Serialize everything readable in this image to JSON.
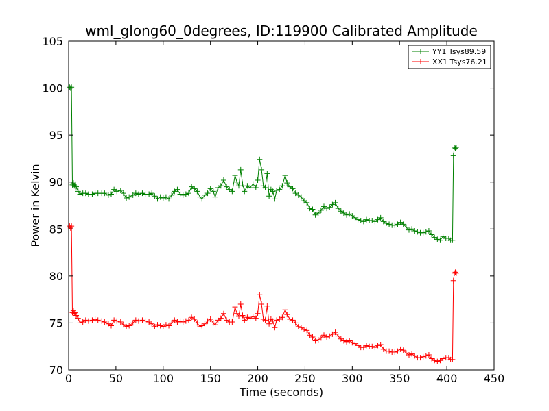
{
  "chart_data": {
    "type": "line",
    "title": "wml_glong60_0degrees, ID:119900 Calibrated Amplitude",
    "xlabel": "Time (seconds)",
    "ylabel": "Power in Kelvin",
    "xlim": [
      0,
      450
    ],
    "ylim": [
      70,
      105
    ],
    "x_ticks": [
      0,
      50,
      100,
      150,
      200,
      250,
      300,
      350,
      400,
      450
    ],
    "y_ticks": [
      70,
      75,
      80,
      85,
      90,
      95,
      100,
      105
    ],
    "grid": false,
    "legend_position": "top-right",
    "marker": "plus",
    "series": [
      {
        "name": "YY1 Tsys89.59",
        "color": "#008000",
        "points": [
          [
            1,
            100.1
          ],
          [
            2,
            100.0
          ],
          [
            3,
            100.1
          ],
          [
            4,
            89.7
          ],
          [
            5,
            89.9
          ],
          [
            6,
            89.6
          ],
          [
            7,
            89.8
          ],
          [
            8,
            89.5
          ],
          [
            10,
            89.0
          ],
          [
            12,
            88.7
          ],
          [
            15,
            88.8
          ],
          [
            18,
            88.8
          ],
          [
            21,
            88.7
          ],
          [
            25,
            88.7
          ],
          [
            28,
            88.8
          ],
          [
            31,
            88.8
          ],
          [
            35,
            88.8
          ],
          [
            38,
            88.8
          ],
          [
            42,
            88.6
          ],
          [
            45,
            88.7
          ],
          [
            48,
            89.2
          ],
          [
            51,
            89.0
          ],
          [
            55,
            89.1
          ],
          [
            58,
            88.8
          ],
          [
            61,
            88.3
          ],
          [
            64,
            88.4
          ],
          [
            68,
            88.6
          ],
          [
            71,
            88.8
          ],
          [
            74,
            88.7
          ],
          [
            78,
            88.8
          ],
          [
            81,
            88.7
          ],
          [
            85,
            88.7
          ],
          [
            88,
            88.8
          ],
          [
            91,
            88.5
          ],
          [
            94,
            88.2
          ],
          [
            97,
            88.4
          ],
          [
            100,
            88.3
          ],
          [
            103,
            88.4
          ],
          [
            106,
            88.2
          ],
          [
            109,
            88.6
          ],
          [
            112,
            89.0
          ],
          [
            115,
            89.2
          ],
          [
            118,
            88.7
          ],
          [
            121,
            88.6
          ],
          [
            124,
            88.7
          ],
          [
            127,
            88.8
          ],
          [
            130,
            89.5
          ],
          [
            133,
            89.3
          ],
          [
            136,
            89.0
          ],
          [
            139,
            88.4
          ],
          [
            141,
            88.2
          ],
          [
            144,
            88.6
          ],
          [
            147,
            88.8
          ],
          [
            150,
            89.3
          ],
          [
            153,
            89.0
          ],
          [
            155,
            88.4
          ],
          [
            158,
            89.4
          ],
          [
            161,
            89.6
          ],
          [
            164,
            90.2
          ],
          [
            167,
            89.5
          ],
          [
            170,
            89.2
          ],
          [
            173,
            89.0
          ],
          [
            176,
            90.7
          ],
          [
            178,
            90.0
          ],
          [
            180,
            89.6
          ],
          [
            182,
            91.3
          ],
          [
            184,
            89.8
          ],
          [
            186,
            89.0
          ],
          [
            189,
            89.6
          ],
          [
            192,
            89.4
          ],
          [
            195,
            89.8
          ],
          [
            198,
            89.4
          ],
          [
            200,
            90.2
          ],
          [
            202,
            92.4
          ],
          [
            204,
            91.3
          ],
          [
            206,
            89.6
          ],
          [
            208,
            89.4
          ],
          [
            210,
            90.9
          ],
          [
            212,
            88.5
          ],
          [
            214,
            89.2
          ],
          [
            216,
            89.0
          ],
          [
            218,
            88.2
          ],
          [
            220,
            89.1
          ],
          [
            223,
            89.2
          ],
          [
            226,
            89.6
          ],
          [
            229,
            90.7
          ],
          [
            231,
            89.9
          ],
          [
            234,
            89.5
          ],
          [
            237,
            89.3
          ],
          [
            240,
            88.8
          ],
          [
            243,
            88.6
          ],
          [
            246,
            88.4
          ],
          [
            249,
            88.0
          ],
          [
            252,
            87.8
          ],
          [
            255,
            87.2
          ],
          [
            258,
            87.1
          ],
          [
            261,
            86.5
          ],
          [
            264,
            86.7
          ],
          [
            267,
            87.0
          ],
          [
            270,
            87.4
          ],
          [
            273,
            87.2
          ],
          [
            276,
            87.3
          ],
          [
            279,
            87.6
          ],
          [
            282,
            87.8
          ],
          [
            285,
            87.2
          ],
          [
            288,
            86.9
          ],
          [
            291,
            86.7
          ],
          [
            294,
            86.5
          ],
          [
            297,
            86.6
          ],
          [
            300,
            86.4
          ],
          [
            303,
            86.2
          ],
          [
            306,
            86.0
          ],
          [
            309,
            85.9
          ],
          [
            312,
            85.8
          ],
          [
            315,
            86.0
          ],
          [
            318,
            85.9
          ],
          [
            321,
            85.9
          ],
          [
            324,
            85.8
          ],
          [
            327,
            86.0
          ],
          [
            330,
            86.2
          ],
          [
            333,
            85.8
          ],
          [
            336,
            85.6
          ],
          [
            339,
            85.5
          ],
          [
            342,
            85.4
          ],
          [
            345,
            85.4
          ],
          [
            348,
            85.5
          ],
          [
            351,
            85.7
          ],
          [
            354,
            85.5
          ],
          [
            357,
            85.2
          ],
          [
            360,
            84.9
          ],
          [
            363,
            85.0
          ],
          [
            366,
            84.8
          ],
          [
            369,
            84.7
          ],
          [
            372,
            84.6
          ],
          [
            375,
            84.6
          ],
          [
            378,
            84.7
          ],
          [
            381,
            84.8
          ],
          [
            384,
            84.4
          ],
          [
            387,
            84.1
          ],
          [
            390,
            83.9
          ],
          [
            393,
            83.8
          ],
          [
            396,
            84.2
          ],
          [
            399,
            84.0
          ],
          [
            402,
            84.0
          ],
          [
            404,
            83.8
          ],
          [
            406,
            83.8
          ],
          [
            407,
            92.8
          ],
          [
            408,
            93.7
          ],
          [
            409,
            93.6
          ],
          [
            410,
            93.7
          ]
        ]
      },
      {
        "name": "XX1 Tsys76.21",
        "color": "#ff0000",
        "points": [
          [
            1,
            85.3
          ],
          [
            2,
            85.1
          ],
          [
            3,
            85.3
          ],
          [
            4,
            76.1
          ],
          [
            5,
            76.3
          ],
          [
            6,
            76.0
          ],
          [
            7,
            76.1
          ],
          [
            8,
            75.8
          ],
          [
            10,
            75.5
          ],
          [
            12,
            75.0
          ],
          [
            15,
            75.1
          ],
          [
            18,
            75.3
          ],
          [
            21,
            75.2
          ],
          [
            25,
            75.3
          ],
          [
            28,
            75.4
          ],
          [
            31,
            75.3
          ],
          [
            35,
            75.2
          ],
          [
            38,
            75.1
          ],
          [
            42,
            74.9
          ],
          [
            45,
            74.7
          ],
          [
            48,
            75.3
          ],
          [
            51,
            75.2
          ],
          [
            55,
            75.1
          ],
          [
            58,
            74.8
          ],
          [
            61,
            74.6
          ],
          [
            64,
            74.7
          ],
          [
            68,
            75.0
          ],
          [
            71,
            75.3
          ],
          [
            74,
            75.2
          ],
          [
            78,
            75.3
          ],
          [
            81,
            75.2
          ],
          [
            85,
            75.1
          ],
          [
            88,
            74.9
          ],
          [
            91,
            74.6
          ],
          [
            94,
            74.8
          ],
          [
            97,
            74.7
          ],
          [
            100,
            74.6
          ],
          [
            103,
            74.8
          ],
          [
            106,
            74.7
          ],
          [
            109,
            75.0
          ],
          [
            112,
            75.3
          ],
          [
            115,
            75.1
          ],
          [
            118,
            75.2
          ],
          [
            121,
            75.1
          ],
          [
            124,
            75.2
          ],
          [
            127,
            75.3
          ],
          [
            130,
            75.6
          ],
          [
            133,
            75.4
          ],
          [
            136,
            75.0
          ],
          [
            139,
            74.6
          ],
          [
            141,
            74.7
          ],
          [
            144,
            74.9
          ],
          [
            147,
            75.2
          ],
          [
            150,
            75.4
          ],
          [
            153,
            75.0
          ],
          [
            155,
            74.8
          ],
          [
            158,
            75.3
          ],
          [
            161,
            75.5
          ],
          [
            164,
            76.0
          ],
          [
            167,
            75.3
          ],
          [
            170,
            75.1
          ],
          [
            173,
            75.1
          ],
          [
            176,
            76.7
          ],
          [
            178,
            76.0
          ],
          [
            180,
            75.7
          ],
          [
            182,
            77.0
          ],
          [
            184,
            75.8
          ],
          [
            186,
            75.3
          ],
          [
            189,
            75.6
          ],
          [
            192,
            75.5
          ],
          [
            195,
            75.7
          ],
          [
            198,
            75.5
          ],
          [
            200,
            76.0
          ],
          [
            202,
            78.0
          ],
          [
            204,
            77.0
          ],
          [
            206,
            75.4
          ],
          [
            208,
            75.3
          ],
          [
            210,
            76.8
          ],
          [
            212,
            74.9
          ],
          [
            214,
            75.4
          ],
          [
            216,
            75.2
          ],
          [
            218,
            74.5
          ],
          [
            220,
            75.3
          ],
          [
            223,
            75.4
          ],
          [
            226,
            75.6
          ],
          [
            229,
            76.4
          ],
          [
            231,
            75.9
          ],
          [
            234,
            75.4
          ],
          [
            237,
            75.3
          ],
          [
            240,
            75.0
          ],
          [
            243,
            74.6
          ],
          [
            246,
            74.5
          ],
          [
            249,
            74.3
          ],
          [
            252,
            74.2
          ],
          [
            255,
            73.7
          ],
          [
            258,
            73.5
          ],
          [
            261,
            73.1
          ],
          [
            264,
            73.2
          ],
          [
            267,
            73.4
          ],
          [
            270,
            73.7
          ],
          [
            273,
            73.5
          ],
          [
            276,
            73.6
          ],
          [
            279,
            73.8
          ],
          [
            282,
            74.0
          ],
          [
            285,
            73.6
          ],
          [
            288,
            73.3
          ],
          [
            291,
            73.1
          ],
          [
            294,
            73.0
          ],
          [
            297,
            73.1
          ],
          [
            300,
            72.9
          ],
          [
            303,
            72.8
          ],
          [
            306,
            72.6
          ],
          [
            309,
            72.4
          ],
          [
            312,
            72.4
          ],
          [
            315,
            72.6
          ],
          [
            318,
            72.5
          ],
          [
            321,
            72.5
          ],
          [
            324,
            72.4
          ],
          [
            327,
            72.6
          ],
          [
            330,
            72.7
          ],
          [
            333,
            72.2
          ],
          [
            336,
            72.0
          ],
          [
            339,
            72.0
          ],
          [
            342,
            71.9
          ],
          [
            345,
            71.9
          ],
          [
            348,
            72.0
          ],
          [
            351,
            72.2
          ],
          [
            354,
            72.1
          ],
          [
            357,
            71.8
          ],
          [
            360,
            71.6
          ],
          [
            363,
            71.7
          ],
          [
            366,
            71.5
          ],
          [
            369,
            71.3
          ],
          [
            372,
            71.3
          ],
          [
            375,
            71.4
          ],
          [
            378,
            71.5
          ],
          [
            381,
            71.6
          ],
          [
            384,
            71.2
          ],
          [
            387,
            71.0
          ],
          [
            390,
            70.9
          ],
          [
            393,
            71.0
          ],
          [
            396,
            71.2
          ],
          [
            399,
            71.3
          ],
          [
            402,
            71.3
          ],
          [
            404,
            71.1
          ],
          [
            406,
            71.1
          ],
          [
            407,
            79.5
          ],
          [
            408,
            80.3
          ],
          [
            409,
            80.4
          ],
          [
            410,
            80.3
          ]
        ]
      }
    ]
  }
}
